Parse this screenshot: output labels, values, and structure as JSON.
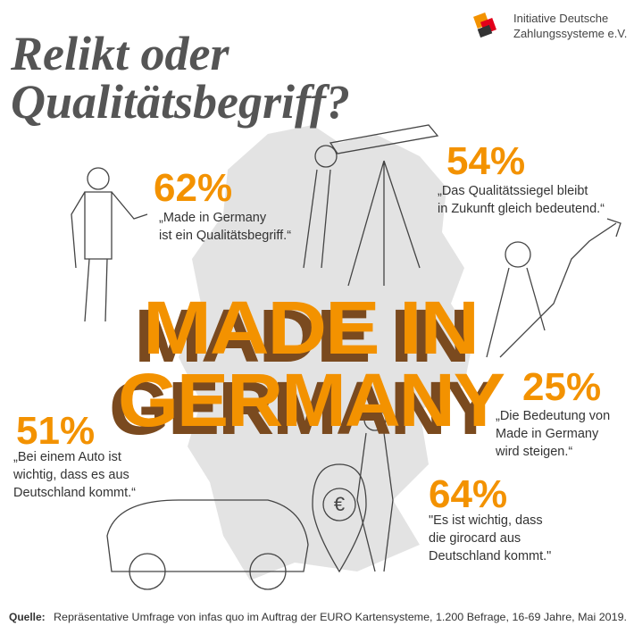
{
  "header": {
    "title_lines": [
      "Relikt oder",
      "Qualitätsbegriff?"
    ],
    "logo_lines": [
      "Initiative Deutsche",
      "Zahlungssysteme e.V."
    ]
  },
  "headline": [
    "MADE IN",
    "GERMANY"
  ],
  "stats": [
    {
      "percent": "62%",
      "quote_lines": [
        "„Made in Germany",
        "ist ein Qualitätsbegriff.“"
      ]
    },
    {
      "percent": "54%",
      "quote_lines": [
        "„Das Qualitätssiegel bleibt",
        "in Zukunft gleich bedeutend.“"
      ]
    },
    {
      "percent": "25%",
      "quote_lines": [
        "„Die Bedeutung von",
        "Made in Germany",
        "wird steigen.“"
      ]
    },
    {
      "percent": "51%",
      "quote_lines": [
        "„Bei einem Auto ist",
        "wichtig, dass es aus",
        "Deutschland kommt.“"
      ]
    },
    {
      "percent": "64%",
      "quote_lines": [
        "\"Es ist wichtig, dass",
        "die girocard aus",
        "Deutschland kommt.\""
      ]
    }
  ],
  "source": {
    "label": "Quelle:",
    "text": "Repräsentative Umfrage von infas quo im Auftrag der EURO Kartensysteme, 1.200 Befrage, 16-69 Jahre, Mai 2019."
  }
}
